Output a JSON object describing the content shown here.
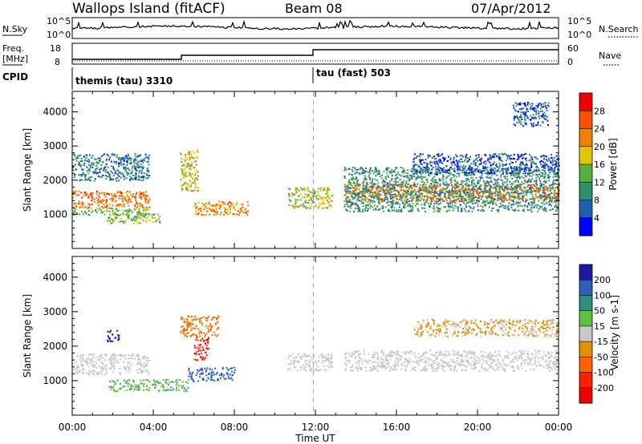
{
  "header": {
    "station": "Wallops Island (fitACF)",
    "beam": "Beam 08",
    "date": "07/Apr/2012"
  },
  "noise_panel": {
    "left_label": "N.Sky",
    "right_label": "N.Search",
    "left_ticks": [
      "10^5",
      "10^0"
    ],
    "right_ticks": [
      "10^5",
      "10^0"
    ]
  },
  "freq_panel": {
    "left_label": "Freq.",
    "left_unit": "[MHz]",
    "right_label": "Nave",
    "left_ticks": [
      "18",
      "8"
    ],
    "right_ticks": [
      "60",
      "0"
    ]
  },
  "cpid_panel": {
    "label": "CPID",
    "modes": [
      {
        "text": "themis (tau) 3310",
        "start_hour": 0
      },
      {
        "text": "tau (fast) 503",
        "start_hour": 12
      }
    ]
  },
  "colors": {
    "power_scale": [
      "#0000ff",
      "#1f5fb0",
      "#2f8f6f",
      "#55b040",
      "#e0c800",
      "#f08000",
      "#ff5000",
      "#ee0000"
    ],
    "velocity_scale": [
      "#1a1aa0",
      "#2d60b8",
      "#2f9080",
      "#60c040",
      "#c8c8c8",
      "#e09000",
      "#ff6000",
      "#ff2000",
      "#ee0000"
    ],
    "gray_scatter": "#c8c8c8",
    "step_line": "#000000"
  },
  "chart_data": [
    {
      "type": "heatmap",
      "panel": "power",
      "ylabel": "Slant Range [km]",
      "ylim": [
        0,
        4600
      ],
      "yticks": [
        1000,
        2000,
        3000,
        4000
      ],
      "xlim": [
        0,
        24
      ],
      "colorbar": {
        "label": "Power [dB]",
        "ticks": [
          "4",
          "8",
          "12",
          "16",
          "20",
          "24",
          "28"
        ],
        "range": [
          0,
          32
        ]
      },
      "echo_regions": [
        {
          "t": [
            0.0,
            3.8
          ],
          "range_km": [
            1200,
            1700
          ],
          "level_db": 24
        },
        {
          "t": [
            0.0,
            3.8
          ],
          "range_km": [
            1000,
            1200
          ],
          "level_db": 14
        },
        {
          "t": [
            0.0,
            3.8
          ],
          "range_km": [
            2000,
            2800
          ],
          "level_db": 8
        },
        {
          "t": [
            1.7,
            4.3
          ],
          "range_km": [
            750,
            1050
          ],
          "level_db": 14
        },
        {
          "t": [
            5.3,
            6.2
          ],
          "range_km": [
            1700,
            2900
          ],
          "level_db": 18
        },
        {
          "t": [
            6.0,
            8.7
          ],
          "range_km": [
            1000,
            1400
          ],
          "level_db": 22
        },
        {
          "t": [
            10.6,
            12.8
          ],
          "range_km": [
            1200,
            1800
          ],
          "level_db": 16
        },
        {
          "t": [
            13.4,
            24.0
          ],
          "range_km": [
            1400,
            1900
          ],
          "level_db": 24
        },
        {
          "t": [
            13.4,
            24.0
          ],
          "range_km": [
            1100,
            2400
          ],
          "level_db": 10
        },
        {
          "t": [
            16.8,
            24.0
          ],
          "range_km": [
            2200,
            2800
          ],
          "level_db": 6
        },
        {
          "t": [
            21.7,
            23.5
          ],
          "range_km": [
            3600,
            4300
          ],
          "level_db": 6
        }
      ]
    },
    {
      "type": "heatmap",
      "panel": "velocity",
      "ylabel": "Slant Range [km]",
      "xlabel": "Time UT",
      "ylim": [
        0,
        4600
      ],
      "yticks": [
        1000,
        2000,
        3000,
        4000
      ],
      "xlim": [
        0,
        24
      ],
      "xticks": [
        "00:00",
        "04:00",
        "08:00",
        "12:00",
        "16:00",
        "20:00",
        "00:00"
      ],
      "colorbar": {
        "label": "Velocity [m s-1]",
        "ticks": [
          "200",
          "100",
          "50",
          "15",
          "-15",
          "-50",
          "-100",
          "-200"
        ],
        "range": [
          -250,
          250
        ]
      },
      "echo_regions": [
        {
          "t": [
            0.0,
            3.8
          ],
          "range_km": [
            1200,
            1800
          ],
          "velocity": 0
        },
        {
          "t": [
            1.7,
            2.3
          ],
          "range_km": [
            2150,
            2500
          ],
          "velocity": 200
        },
        {
          "t": [
            1.8,
            5.7
          ],
          "range_km": [
            700,
            1050
          ],
          "velocity": 40
        },
        {
          "t": [
            5.7,
            8.0
          ],
          "range_km": [
            1000,
            1400
          ],
          "velocity": 120
        },
        {
          "t": [
            6.0,
            6.7
          ],
          "range_km": [
            1600,
            2300
          ],
          "velocity": -200
        },
        {
          "t": [
            5.3,
            7.2
          ],
          "range_km": [
            2300,
            2900
          ],
          "velocity": -60
        },
        {
          "t": [
            10.6,
            12.8
          ],
          "range_km": [
            1300,
            1800
          ],
          "velocity": 0
        },
        {
          "t": [
            13.4,
            24.0
          ],
          "range_km": [
            1300,
            1900
          ],
          "velocity": 0
        },
        {
          "t": [
            16.8,
            24.0
          ],
          "range_km": [
            2300,
            2800
          ],
          "velocity": -20
        }
      ]
    }
  ]
}
